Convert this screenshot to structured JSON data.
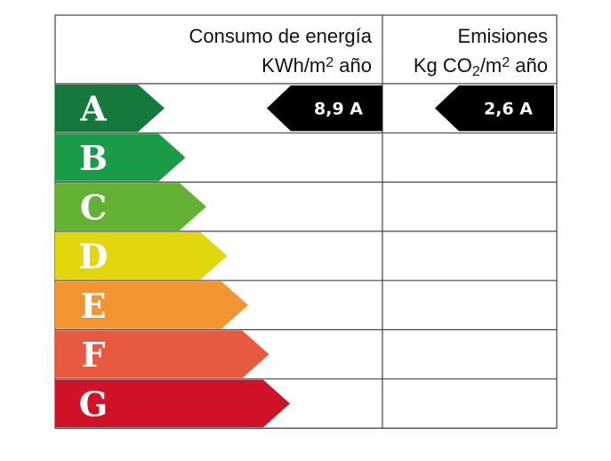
{
  "header": {
    "consumption": {
      "line1": "Consumo de energía",
      "unit_prefix": "KWh/m",
      "unit_sup": "2",
      "unit_suffix": " año"
    },
    "emissions": {
      "line1": "Emisiones",
      "unit_prefix": "Kg CO",
      "unit_sub": "2",
      "unit_mid": "/m",
      "unit_sup": "2",
      "unit_suffix": " año"
    }
  },
  "ratings": [
    {
      "letter": "A",
      "color": "#15793c"
    },
    {
      "letter": "B",
      "color": "#1a9b47"
    },
    {
      "letter": "C",
      "color": "#63b233"
    },
    {
      "letter": "D",
      "color": "#e2d70c"
    },
    {
      "letter": "E",
      "color": "#f2942f"
    },
    {
      "letter": "F",
      "color": "#e85a40"
    },
    {
      "letter": "G",
      "color": "#cf1228"
    }
  ],
  "consumption_result": {
    "label": "8,9 A",
    "rating": "A"
  },
  "emissions_result": {
    "label": "2,6 A",
    "rating": "A"
  }
}
